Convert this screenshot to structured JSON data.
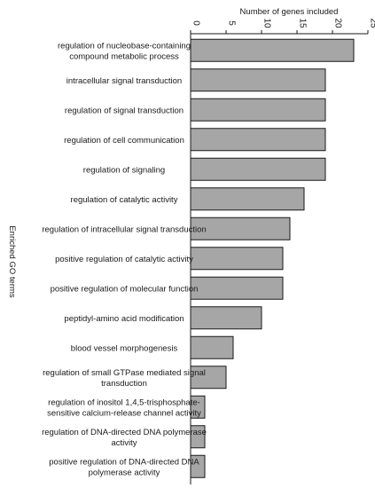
{
  "chart_data": {
    "type": "bar",
    "orientation": "horizontal",
    "xlabel": "Number of genes included",
    "ylabel": "Enriched GO terms",
    "xlim": [
      0,
      25
    ],
    "xticks": [
      0,
      5,
      10,
      15,
      20,
      25
    ],
    "x_axis_position": "top",
    "tick_label_rotation": 90,
    "grid": false,
    "categories": [
      [
        "regulation of nucleobase-containing",
        "compound metabolic process"
      ],
      [
        "intracellular signal transduction"
      ],
      [
        "regulation of signal transduction"
      ],
      [
        "regulation of cell communication"
      ],
      [
        "regulation of signaling"
      ],
      [
        "regulation of catalytic activity"
      ],
      [
        "regulation of intracellular signal transduction"
      ],
      [
        "positive regulation of catalytic activity"
      ],
      [
        "positive regulation of molecular function"
      ],
      [
        "peptidyl-amino acid modification"
      ],
      [
        "blood vessel morphogenesis"
      ],
      [
        "regulation of small GTPase mediated signal",
        "transduction"
      ],
      [
        "regulation of inositol 1,4,5-trisphosphate-",
        "sensitive calcium-release channel activity"
      ],
      [
        "regulation of DNA-directed DNA polymerase",
        "activity"
      ],
      [
        "positive regulation of DNA-directed DNA",
        "polymerase activity"
      ]
    ],
    "values": [
      23,
      19,
      19,
      19,
      19,
      16,
      14,
      13,
      13,
      10,
      6,
      5,
      2,
      2,
      2
    ],
    "colors": {
      "bar": "#a6a6a6",
      "outline": "#1a1a1a"
    }
  }
}
